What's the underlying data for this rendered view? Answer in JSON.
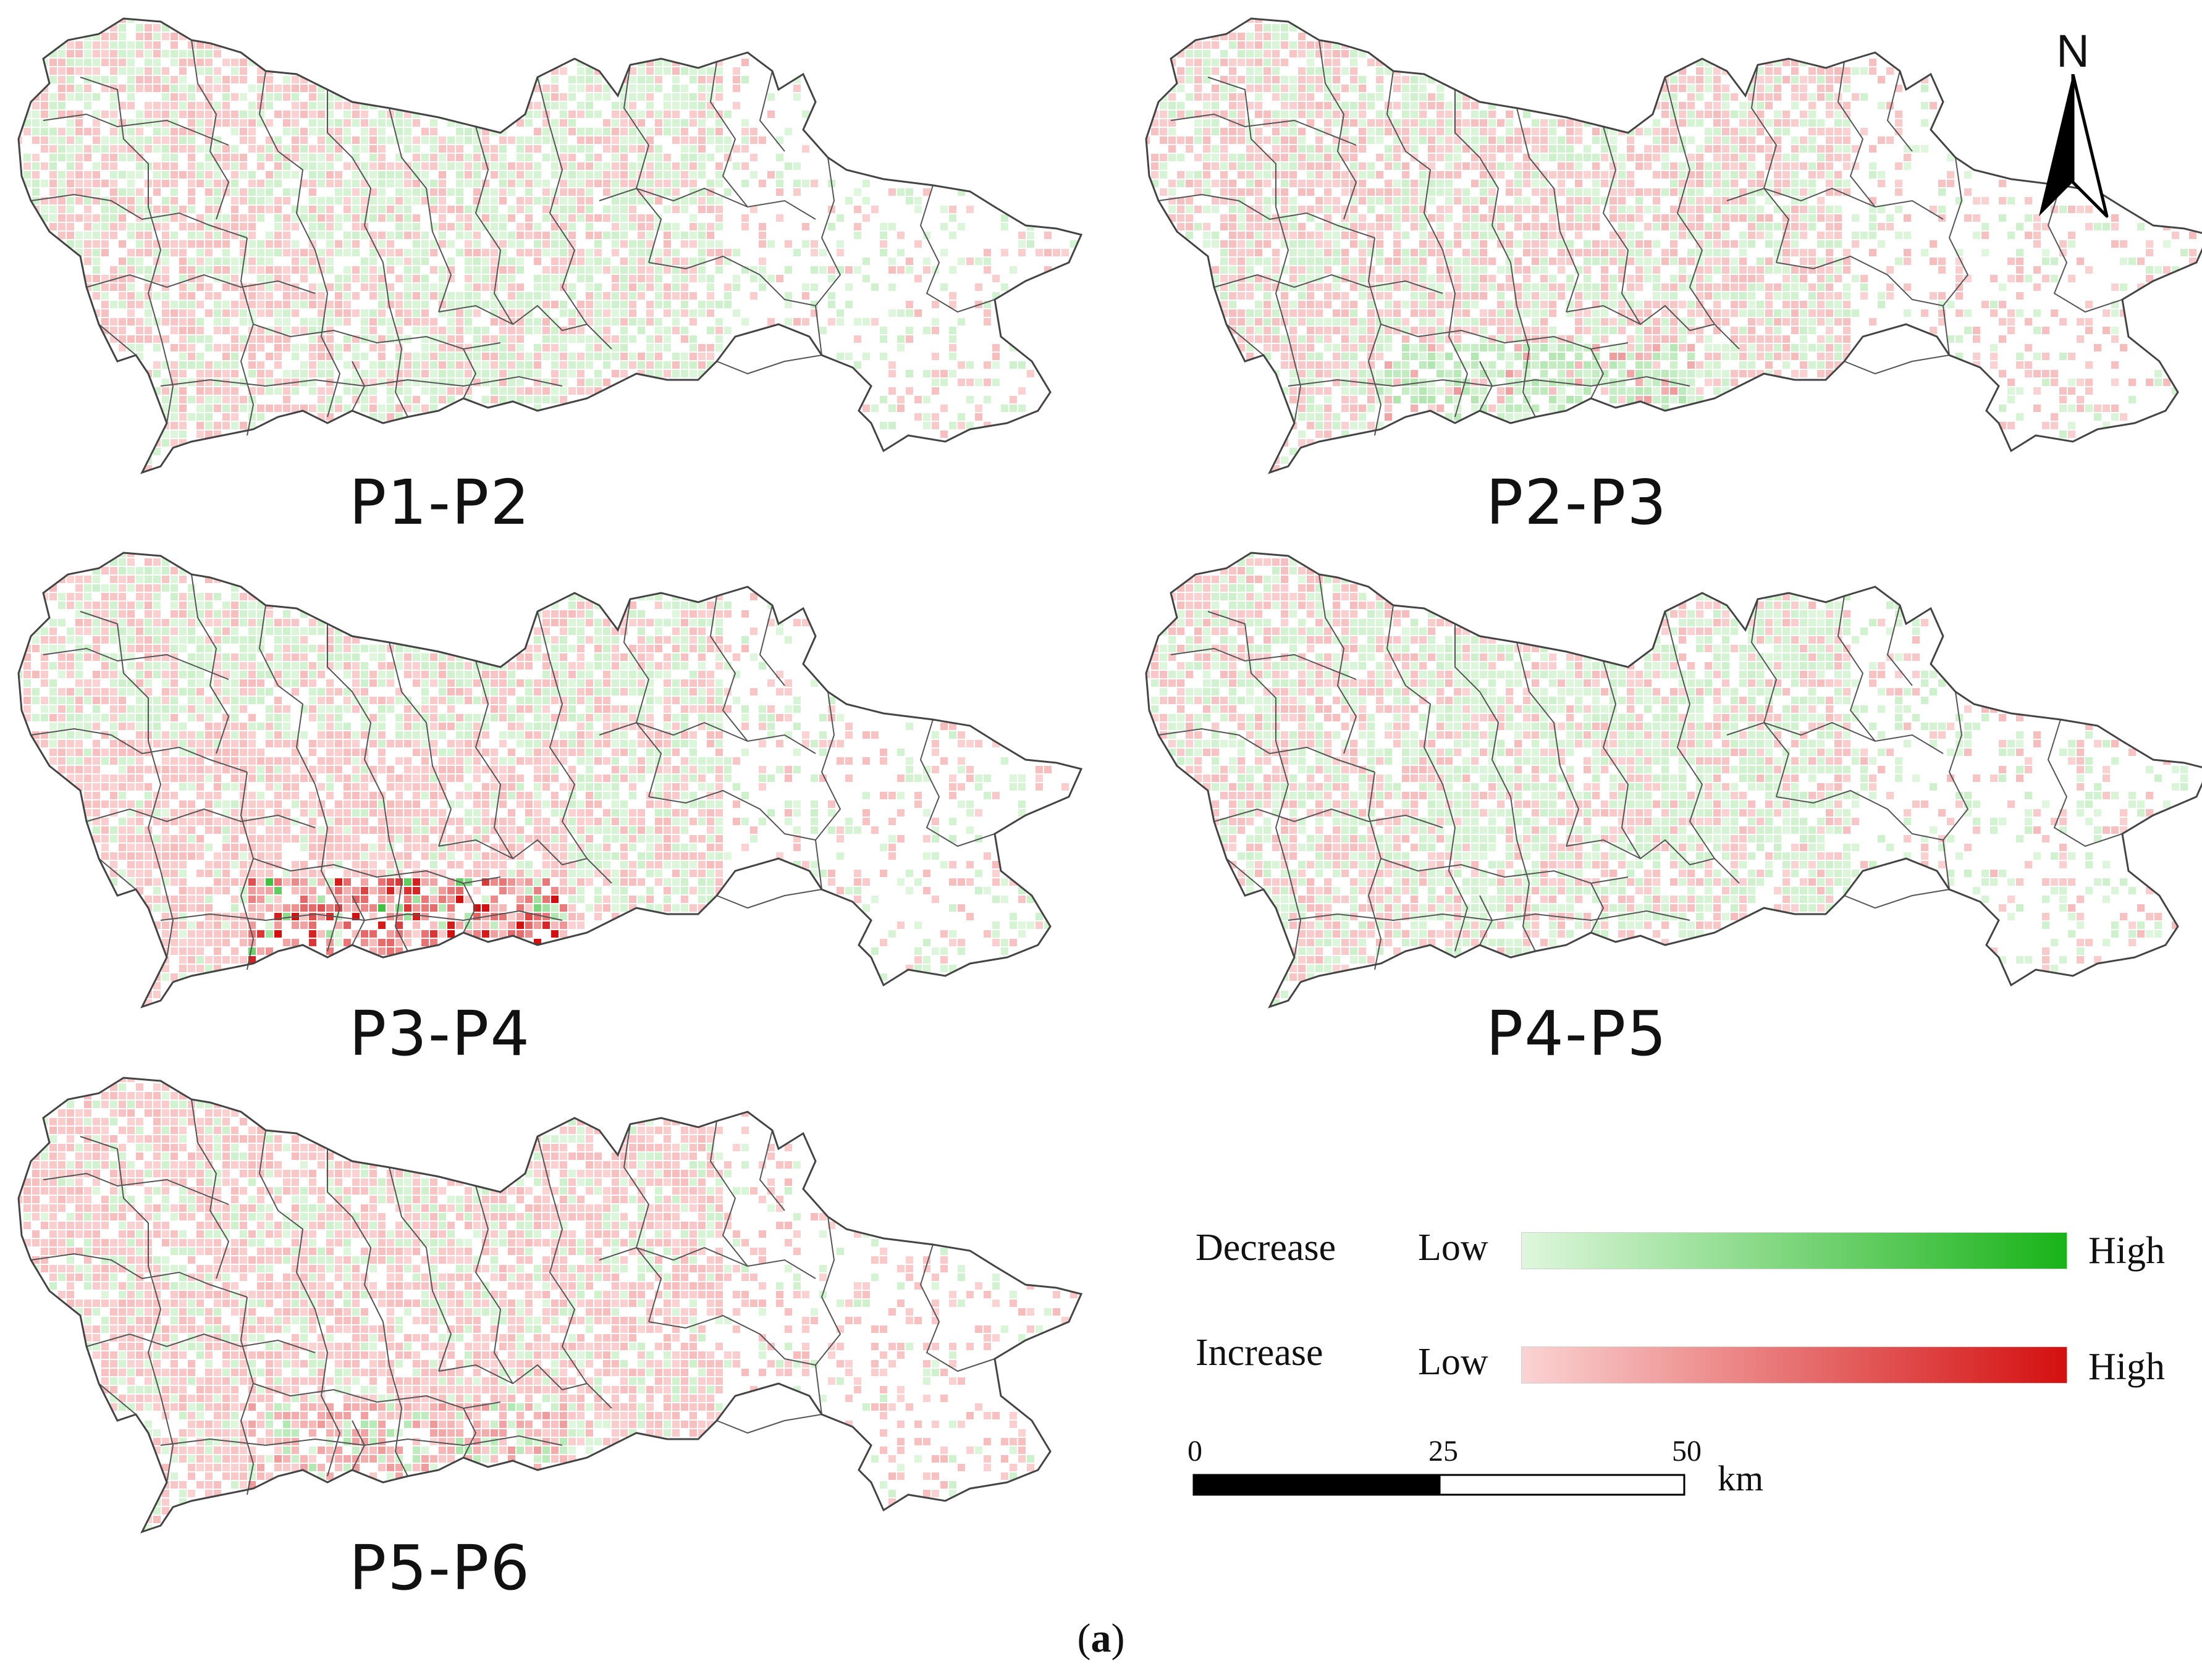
{
  "panels": [
    {
      "id": "p1",
      "label": "P1-P2",
      "scheme": "mixed"
    },
    {
      "id": "p2",
      "label": "P2-P3",
      "scheme": "mixed-green-south"
    },
    {
      "id": "p3",
      "label": "P3-P4",
      "scheme": "red-south"
    },
    {
      "id": "p4",
      "label": "P4-P5",
      "scheme": "mixed"
    },
    {
      "id": "p5",
      "label": "P5-P6",
      "scheme": "pink"
    }
  ],
  "north_arrow": {
    "letter": "N"
  },
  "legend": {
    "decrease": {
      "label": "Decrease",
      "low": "Low",
      "high": "High",
      "color_low": "#dff7dd",
      "color_high": "#19b319"
    },
    "increase": {
      "label": "Increase",
      "low": "Low",
      "high": "High",
      "color_low": "#fbd3d3",
      "color_high": "#d40f0f"
    }
  },
  "scale_bar": {
    "ticks": [
      "0",
      "25",
      "50"
    ],
    "unit": "km"
  },
  "caption": {
    "open": "(",
    "letter": "a",
    "close": ")"
  }
}
